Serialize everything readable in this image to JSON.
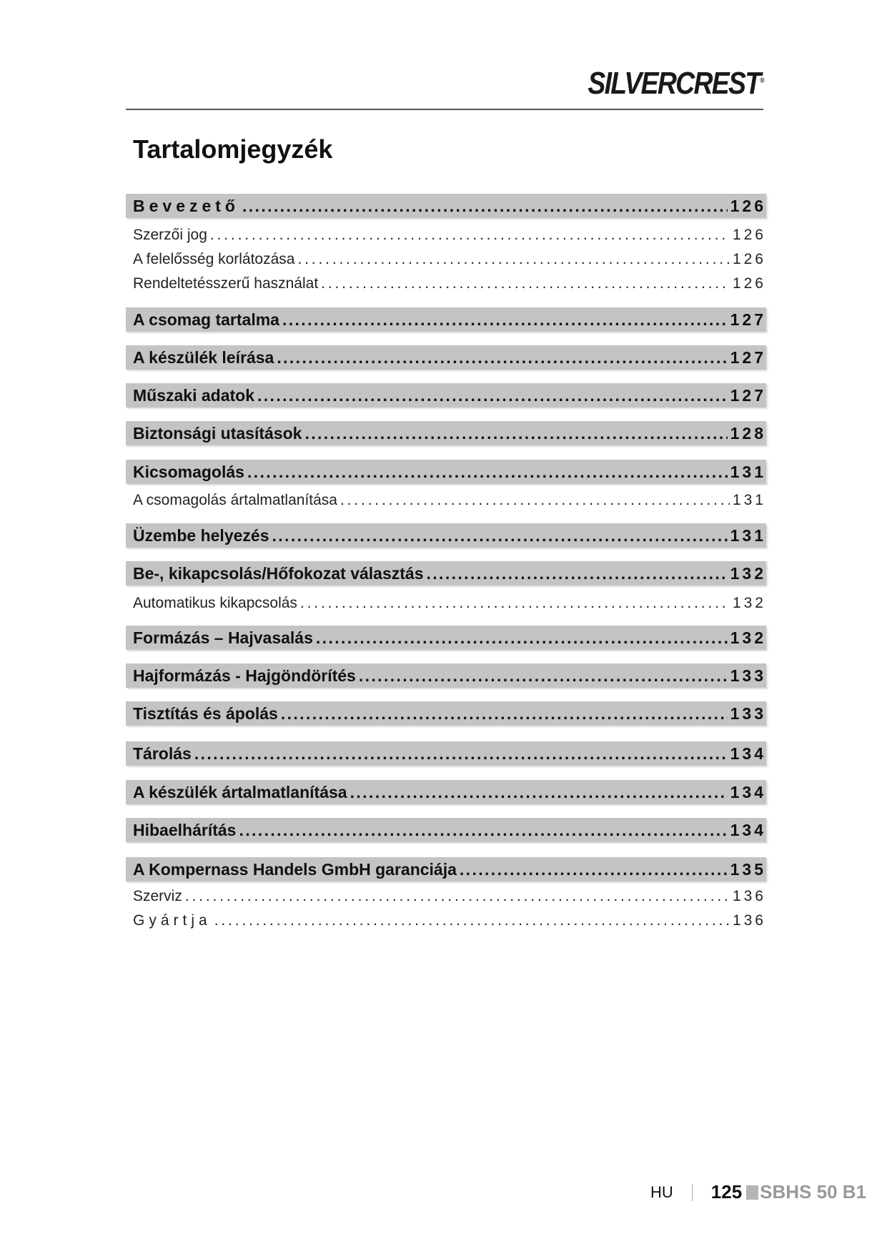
{
  "header": {
    "brand": "SILVERCREST",
    "title": "Tartalomjegyzék"
  },
  "toc": [
    {
      "label": "Bevezető",
      "page": "126",
      "level": "main"
    },
    {
      "label": "Szerzői jog",
      "page": "126",
      "level": "sub"
    },
    {
      "label": "A felelősség korlátozása",
      "page": "126",
      "level": "sub"
    },
    {
      "label": "Rendeltetésszerű használat",
      "page": "126",
      "level": "sub"
    },
    {
      "label": "A csomag tartalma",
      "page": "127",
      "level": "main"
    },
    {
      "label": "A készülék leírása",
      "page": "127",
      "level": "main"
    },
    {
      "label": "Műszaki adatok",
      "page": "127",
      "level": "main"
    },
    {
      "label": "Biztonsági utasítások",
      "page": "128",
      "level": "main"
    },
    {
      "label": "Kicsomagolás",
      "page": "131",
      "level": "main"
    },
    {
      "label": "A csomagolás ártalmatlanítása",
      "page": "131",
      "level": "sub"
    },
    {
      "label": "Üzembe helyezés",
      "page": "131",
      "level": "main"
    },
    {
      "label": "Be-, kikapcsolás/Hőfokozat választás",
      "page": "132",
      "level": "main"
    },
    {
      "label": "Automatikus kikapcsolás",
      "page": "132",
      "level": "sub"
    },
    {
      "label": "Formázás – Hajvasalás",
      "page": "132",
      "level": "main"
    },
    {
      "label": "Hajformázás - Hajgöndörítés",
      "page": "133",
      "level": "main"
    },
    {
      "label": "Tisztítás és ápolás",
      "page": "133",
      "level": "main"
    },
    {
      "label": "Tárolás",
      "page": "134",
      "level": "main"
    },
    {
      "label": "A készülék ártalmatlanítása",
      "page": "134",
      "level": "main"
    },
    {
      "label": "Hibaelhárítás",
      "page": "134",
      "level": "main"
    },
    {
      "label": "A Kompernass Handels GmbH garanciája",
      "page": "135",
      "level": "main"
    },
    {
      "label": "Szerviz",
      "page": "136",
      "level": "sub"
    },
    {
      "label": "Gyártja",
      "page": "136",
      "level": "sub"
    }
  ],
  "footer": {
    "lang": "HU",
    "page": "125",
    "model": "SBHS 50 B1"
  }
}
